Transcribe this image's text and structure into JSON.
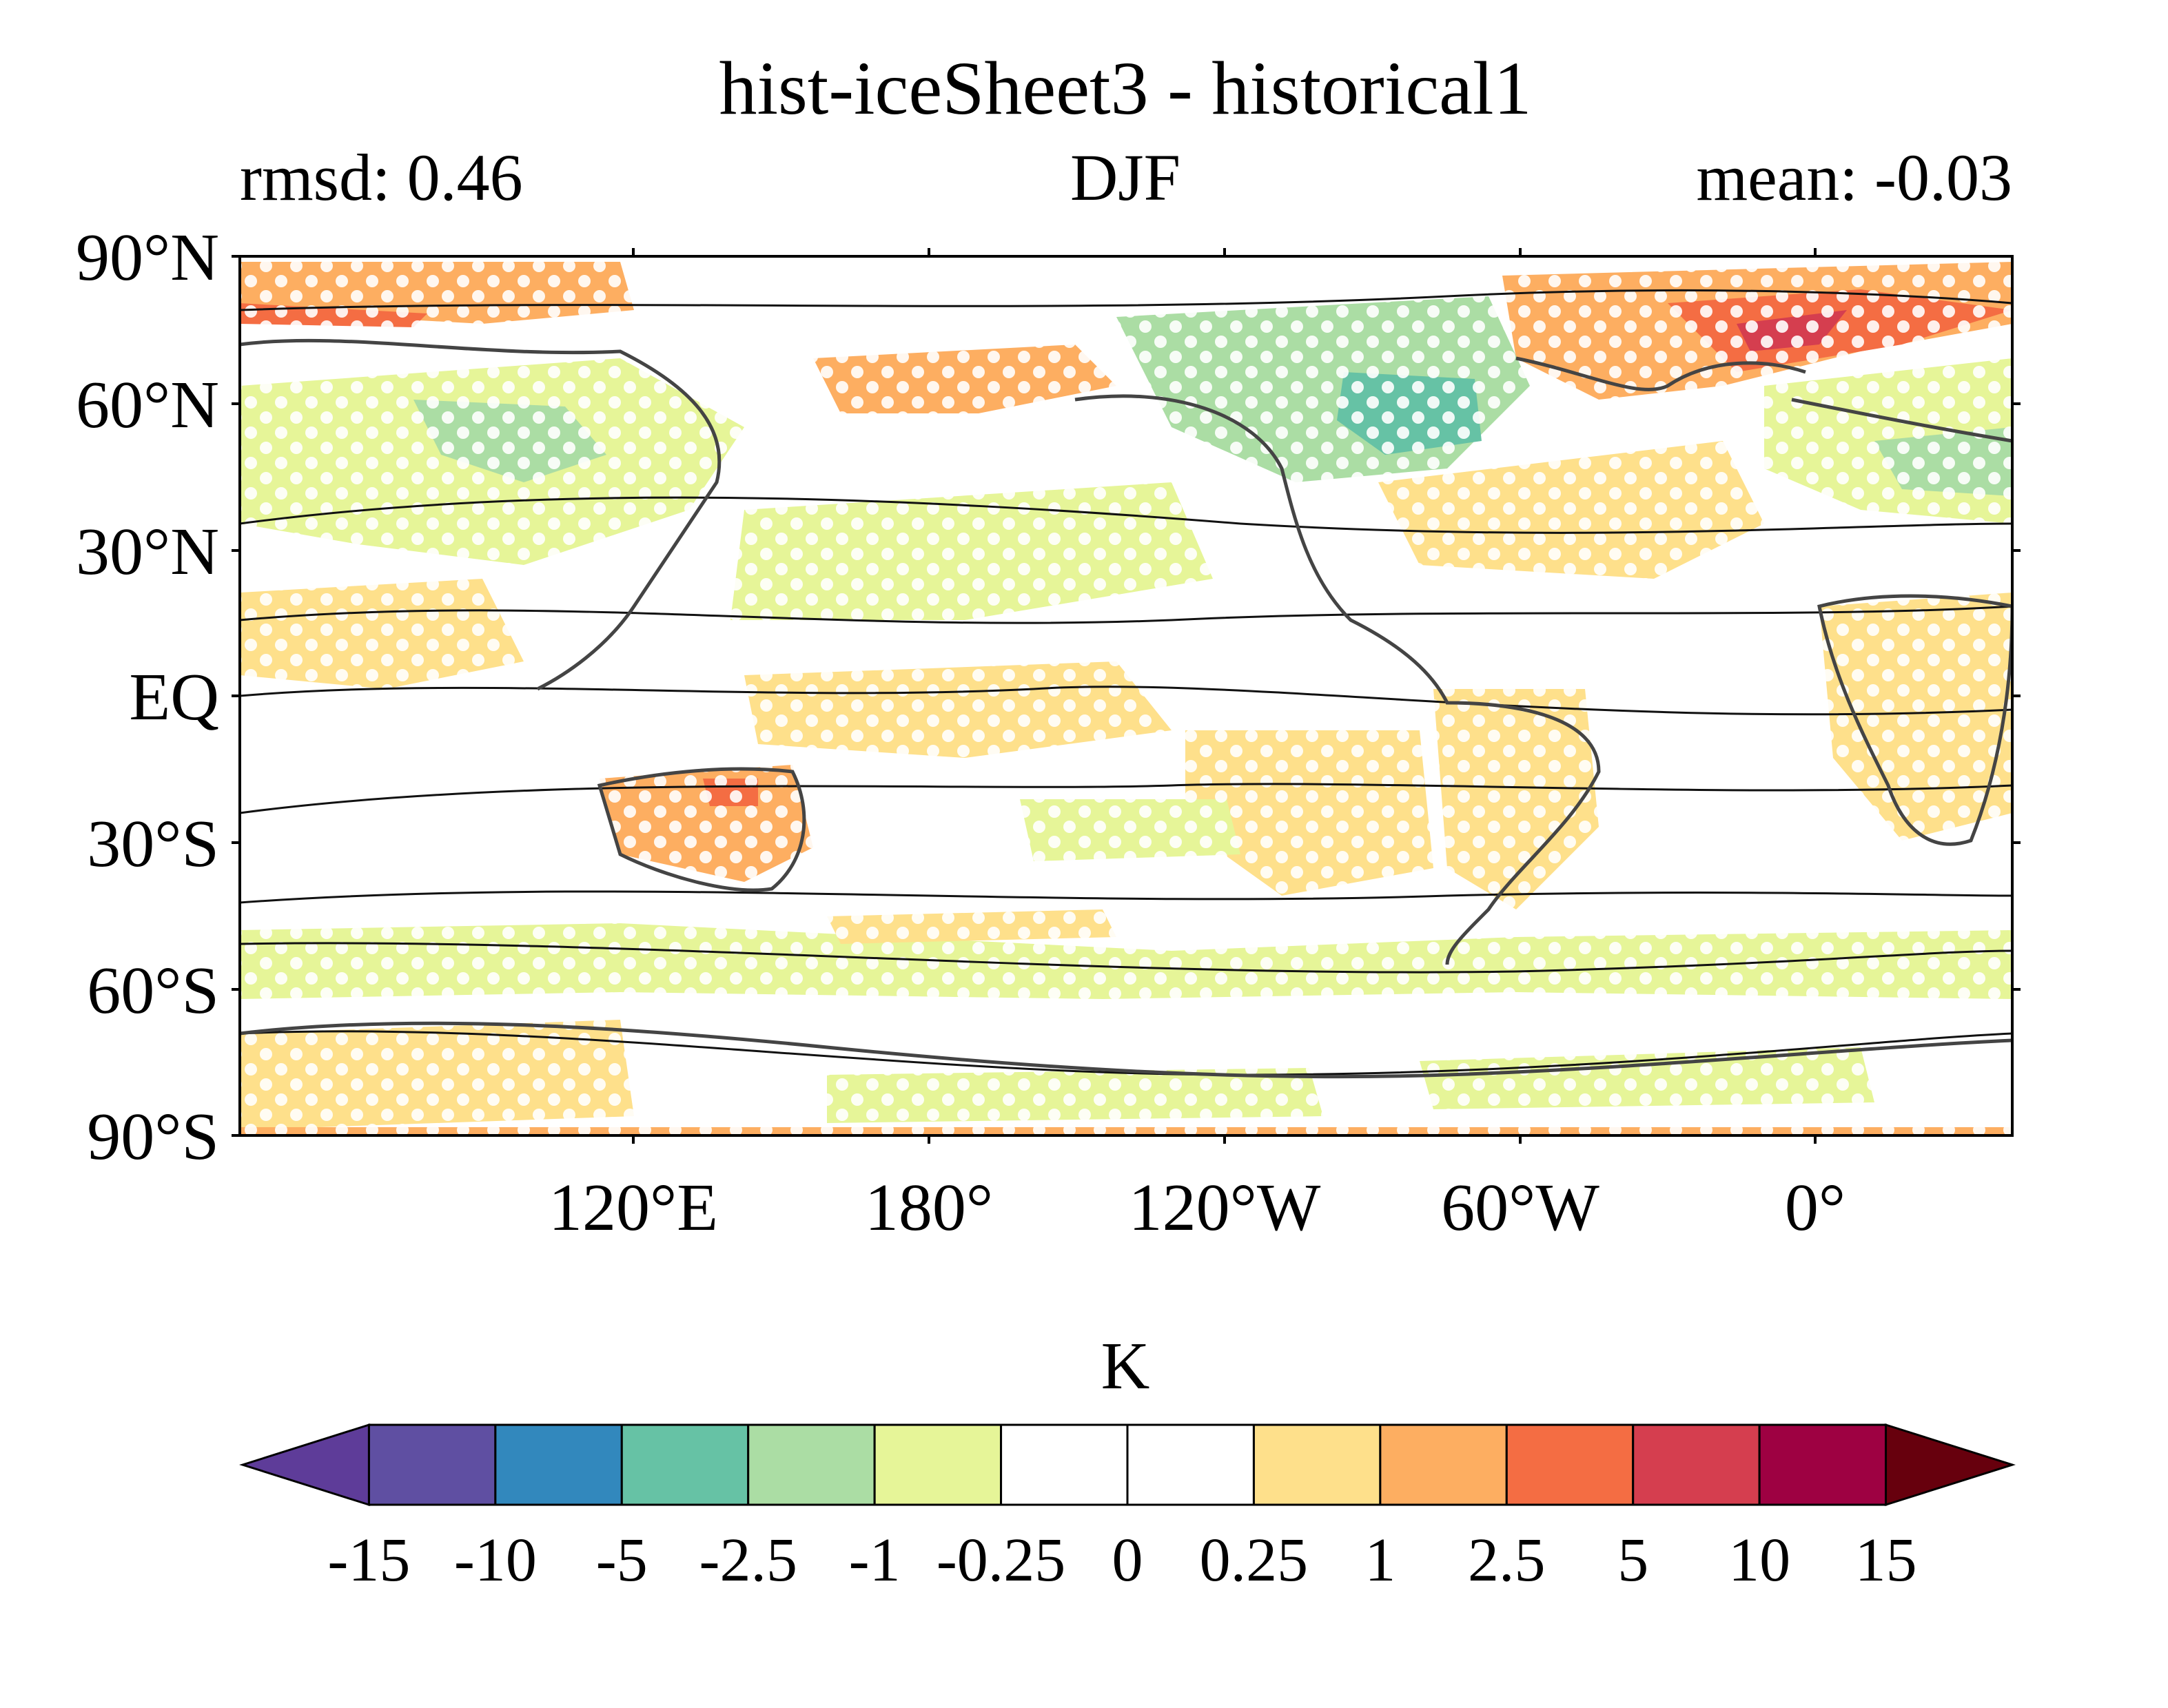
{
  "title": "hist-iceSheet3 - historical1",
  "subtitle_left": "rmsd: 0.46",
  "subtitle_center": "DJF",
  "subtitle_right": "mean: -0.03",
  "lat_labels": [
    "90°N",
    "60°N",
    "30°N",
    "EQ",
    "30°S",
    "60°S",
    "90°S"
  ],
  "lon_labels": [
    "120°E",
    "180°",
    "120°W",
    "60°W",
    "0°"
  ],
  "colorbar": {
    "unit_label": "K",
    "tick_labels": [
      "-15",
      "-10",
      "-5",
      "-2.5",
      "-1",
      "-0.25",
      "0",
      "0.25",
      "1",
      "2.5",
      "5",
      "10",
      "15"
    ],
    "colors": [
      "#5e3c99",
      "#5f4fa2",
      "#3288bd",
      "#66c2a5",
      "#abdda4",
      "#e6f598",
      "#ffffff",
      "#ffffff",
      "#fee08b",
      "#fdae61",
      "#f46d43",
      "#d53e4f",
      "#9e0142",
      "#67000d"
    ]
  },
  "palette": {
    "ocean": "#ffffff",
    "coast": "#444444",
    "contour": "#111111",
    "stipple": "#ffffff"
  }
}
